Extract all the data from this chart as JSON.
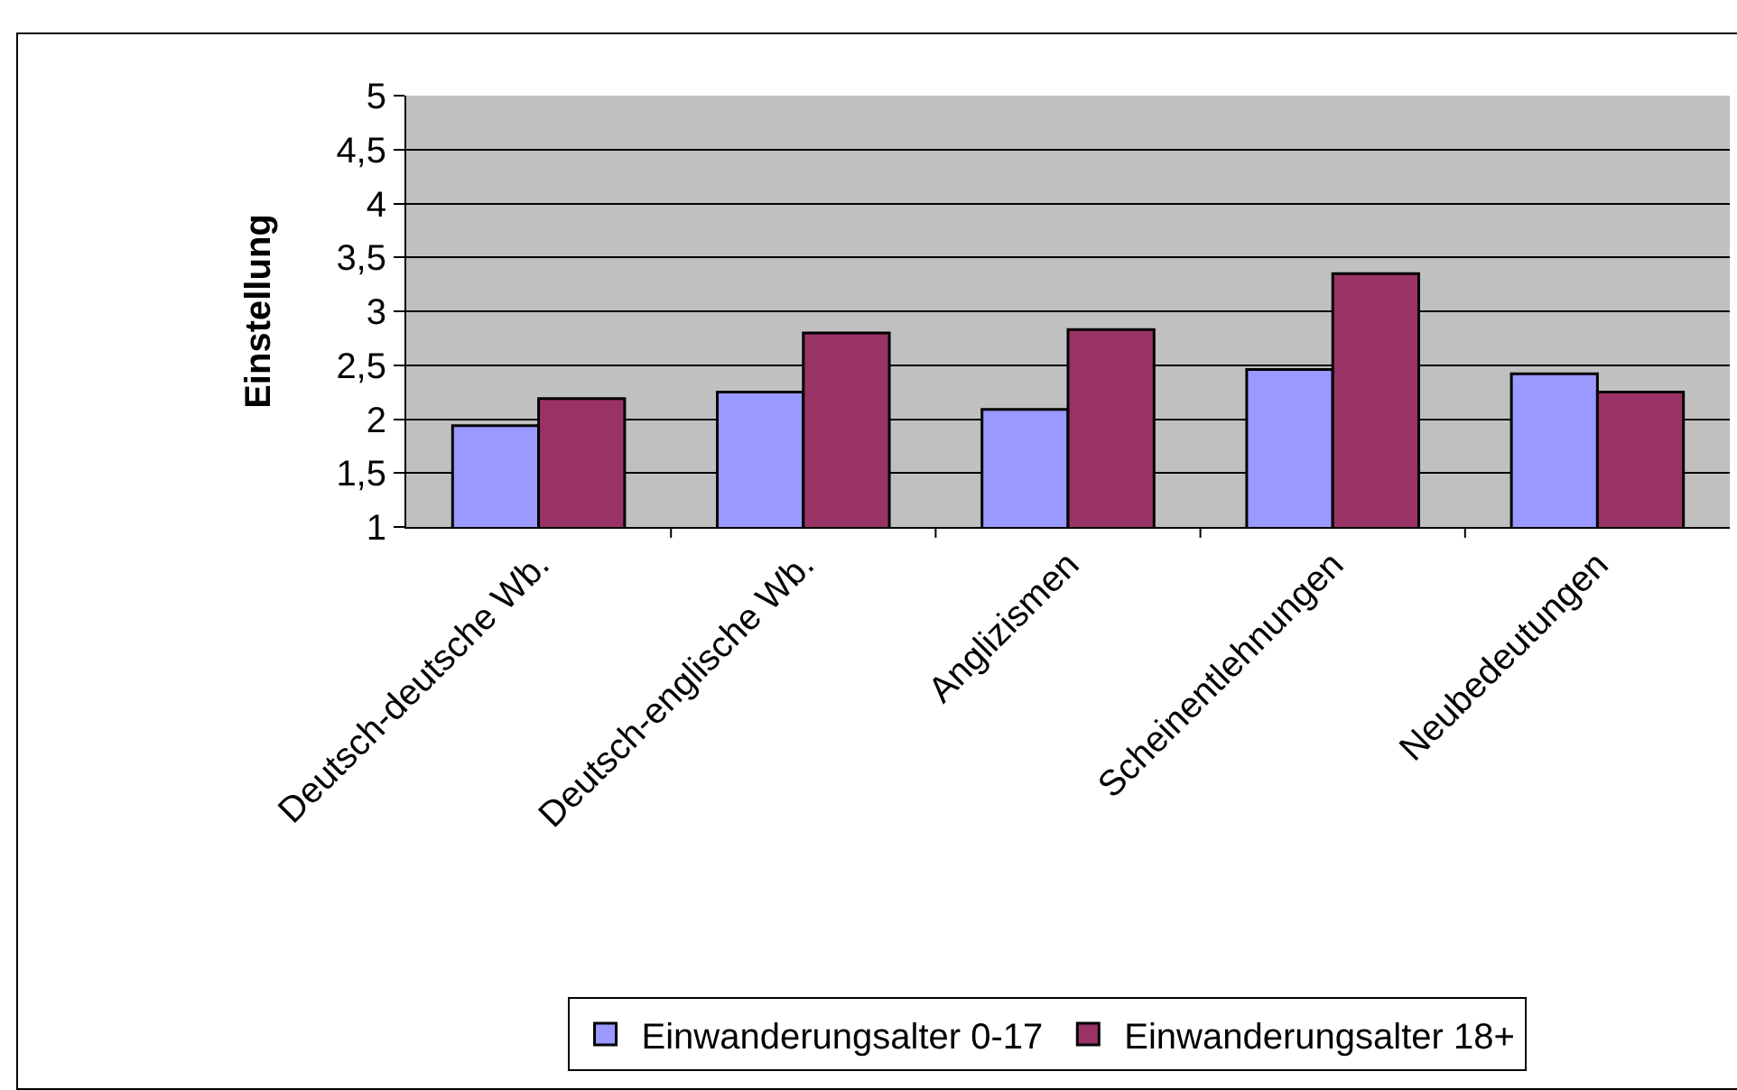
{
  "chart_data": {
    "type": "bar",
    "ylabel": "Einstellung",
    "categories": [
      "Deutsch-deutsche Wb.",
      "Deutsch-englische Wb.",
      "Anglizismen",
      "Scheinentlehnungen",
      "Neubedeutungen"
    ],
    "series": [
      {
        "name": "Einwanderungsalter 0-17",
        "color": "#9999ff",
        "values": [
          1.94,
          2.25,
          2.09,
          2.46,
          2.42
        ]
      },
      {
        "name": "Einwanderungsalter 18+",
        "color": "#993366",
        "values": [
          2.19,
          2.8,
          2.83,
          3.35,
          2.25
        ]
      }
    ],
    "ylim": [
      1,
      5
    ],
    "yticks": [
      1,
      {
        "value": 1.5,
        "label": "1,5"
      },
      2,
      {
        "value": 2.5,
        "label": "2,5"
      },
      3,
      {
        "value": 3.5,
        "label": "3,5"
      },
      4,
      {
        "value": 4.5,
        "label": "4,5"
      },
      5
    ],
    "grid": "y",
    "legend": "bottom"
  }
}
